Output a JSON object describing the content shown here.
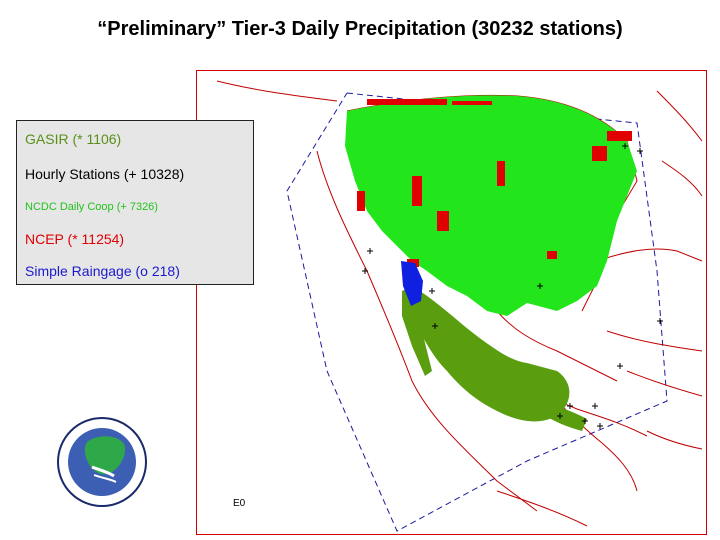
{
  "title": "“Preliminary” Tier-3 Daily Precipitation (30232 stations)",
  "legend": {
    "gasir": "GASIR (* 1106)",
    "hourly": "Hourly Stations (+ 10328)",
    "ncdc": "NCDC Daily Coop (+ 7326)",
    "ncep": "NCEP (* 11254)",
    "simple": "Simple Raingage (o 218)"
  },
  "map_label": "E0",
  "colors": {
    "gasir": "#5a9e10",
    "hourly": "#000000",
    "ncdc": "#22e51c",
    "ncep": "#e00000",
    "simple": "#1020e0",
    "coastline": "#c00000",
    "domain_boundary": "#1a1aa0"
  },
  "logo_icon": "name-project-logo-icon"
}
